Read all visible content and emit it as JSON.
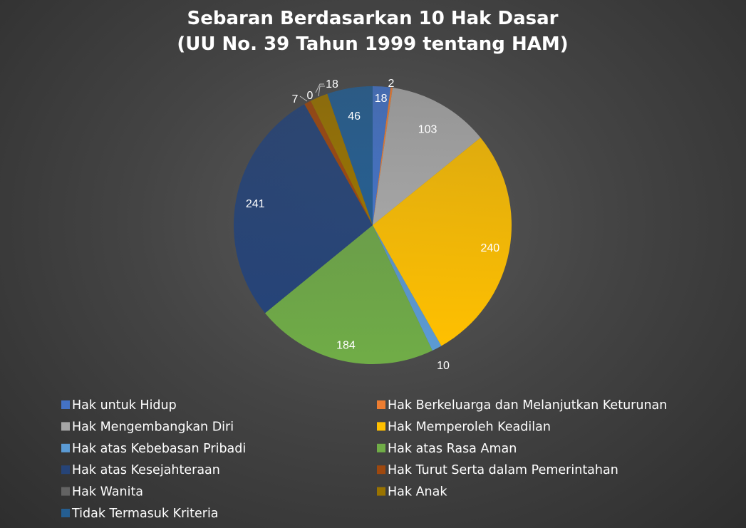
{
  "chart_data": {
    "type": "pie",
    "title": [
      "Sebaran Berdasarkan 10 Hak Dasar",
      "(UU No. 39 Tahun 1999 tentang HAM)"
    ],
    "legend_position": "bottom",
    "slices": [
      {
        "name": "Hak untuk Hidup",
        "value": 18,
        "color": "#4472c4"
      },
      {
        "name": "Hak Berkeluarga dan Melanjutkan Keturunan",
        "value": 2,
        "color": "#ed7d31"
      },
      {
        "name": "Hak Mengembangkan Diri",
        "value": 103,
        "color": "#a5a5a5"
      },
      {
        "name": "Hak Memperoleh Keadilan",
        "value": 240,
        "color": "#ffc000"
      },
      {
        "name": "Hak atas Kebebasan Pribadi",
        "value": 10,
        "color": "#5b9bd5"
      },
      {
        "name": "Hak atas Rasa Aman",
        "value": 184,
        "color": "#70ad47"
      },
      {
        "name": "Hak atas Kesejahteraan",
        "value": 241,
        "color": "#264478"
      },
      {
        "name": "Hak Turut Serta dalam Pemerintahan",
        "value": 7,
        "color": "#9e480e"
      },
      {
        "name": "Hak Wanita",
        "value": 0,
        "color": "#636363"
      },
      {
        "name": "Hak Anak",
        "value": 18,
        "color": "#997300"
      },
      {
        "name": "Tidak Termasuk Kriteria",
        "value": 46,
        "color": "#255e91"
      }
    ]
  }
}
